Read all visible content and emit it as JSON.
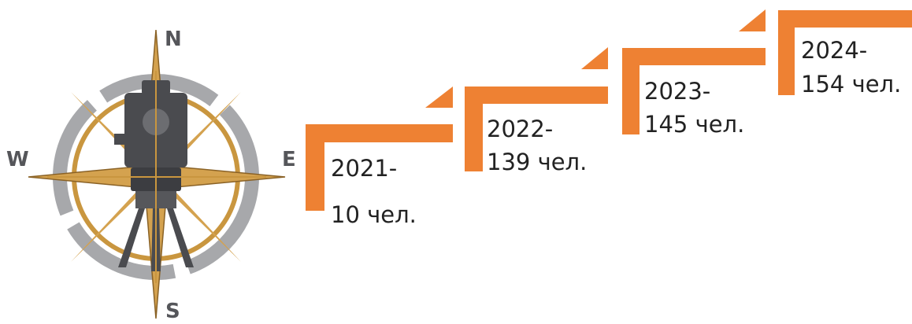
{
  "compass": {
    "labels": [
      "N",
      "W",
      "E",
      "S"
    ]
  },
  "steps": [
    {
      "year": "2021-",
      "count": "10 чел."
    },
    {
      "year": "2022-",
      "count": "139 чел."
    },
    {
      "year": "2023-",
      "count": "145 чел."
    },
    {
      "year": "2024-",
      "count": "154 чел."
    }
  ]
}
